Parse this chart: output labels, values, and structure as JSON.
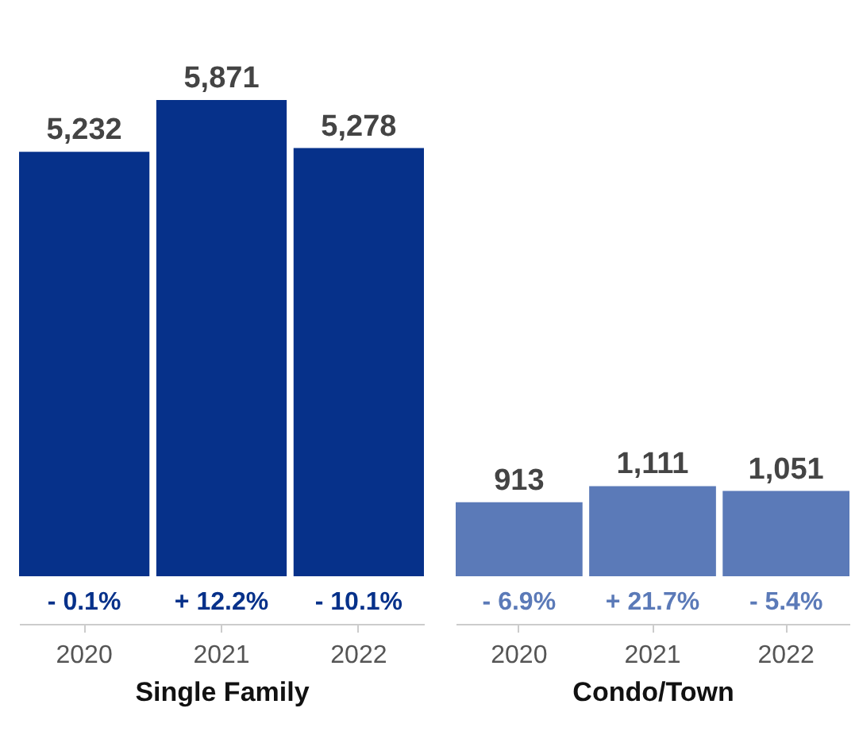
{
  "chart_data": [
    {
      "type": "bar",
      "xlabel": "Single Family",
      "categories": [
        "2020",
        "2021",
        "2022"
      ],
      "series": [
        {
          "color": "#06318a",
          "values": [
            5232,
            5871,
            5278
          ],
          "value_labels": [
            "5,232",
            "5,871",
            "5,278"
          ]
        }
      ],
      "tick_labels": "x",
      "annotations": [
        "- 0.1%",
        "+ 12.2%",
        "- 10.1%"
      ]
    },
    {
      "type": "bar",
      "xlabel": "Condo/Town",
      "categories": [
        "2020",
        "2021",
        "2022"
      ],
      "series": [
        {
          "color": "#5b7ab8",
          "values": [
            913,
            1111,
            1051
          ],
          "value_labels": [
            "913",
            "1,111",
            "1,051"
          ]
        }
      ],
      "tick_labels": "x",
      "annotations": [
        "- 6.9%",
        "+ 21.7%",
        "- 5.4%"
      ]
    }
  ]
}
